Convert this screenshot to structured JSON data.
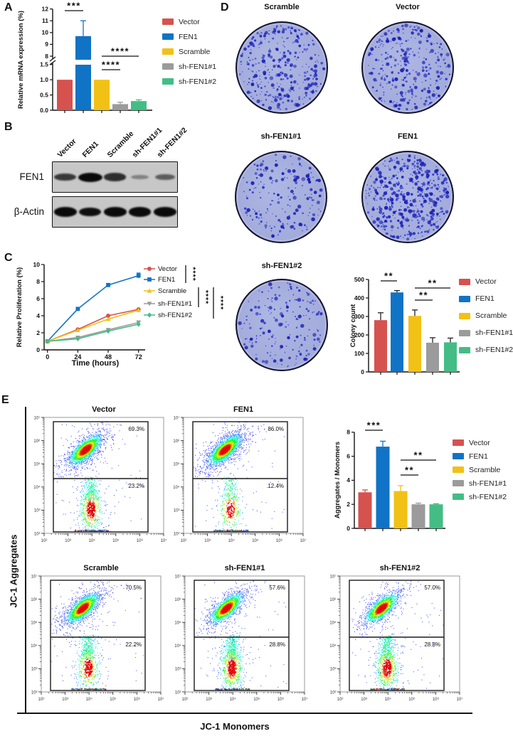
{
  "panel_labels": {
    "a": "A",
    "b": "B",
    "c": "C",
    "d": "D",
    "e": "E"
  },
  "groups": [
    {
      "name": "Vector",
      "color": "#d6524e",
      "marker": "circle"
    },
    {
      "name": "FEN1",
      "color": "#1173c5",
      "marker": "square"
    },
    {
      "name": "Scramble",
      "color": "#f2c115",
      "marker": "triangle"
    },
    {
      "name": "sh-FEN1#1",
      "color": "#9b9b9b",
      "marker": "triangle-down"
    },
    {
      "name": "sh-FEN1#2",
      "color": "#43bd85",
      "marker": "diamond"
    }
  ],
  "chart_data": [
    {
      "id": "mrna",
      "type": "bar",
      "ylabel": "Relative mRNA expression (%)",
      "categories": [
        "Vector",
        "FEN1",
        "Scramble",
        "sh-FEN1#1",
        "sh-FEN1#2"
      ],
      "values": [
        1.0,
        9.7,
        1.0,
        0.2,
        0.3
      ],
      "errors": [
        0,
        1.3,
        0,
        0.06,
        0.04
      ],
      "axis_break": {
        "lower_range": [
          0,
          1.5
        ],
        "upper_range": [
          8,
          12
        ]
      },
      "lower_ticks": [
        "0.0",
        "0.5",
        "1.0",
        "1.5"
      ],
      "upper_ticks": [
        "8",
        "9",
        "10",
        "11",
        "12"
      ],
      "significance": [
        {
          "from": 0,
          "to": 1,
          "label": "***"
        },
        {
          "from": 2,
          "to": 4,
          "label": "****"
        },
        {
          "from": 2,
          "to": 3,
          "label": "****"
        }
      ]
    },
    {
      "id": "proliferation",
      "type": "line",
      "xlabel": "Time (hours)",
      "ylabel": "Relative Proliferation (%)",
      "x": [
        0,
        24,
        48,
        72
      ],
      "xticks": [
        "0",
        "24",
        "48",
        "72"
      ],
      "yticks": [
        "0",
        "2",
        "4",
        "6",
        "8",
        "10"
      ],
      "ylim": [
        0,
        10
      ],
      "series": [
        {
          "name": "Vector",
          "values": [
            1.0,
            2.4,
            4.0,
            4.75
          ]
        },
        {
          "name": "FEN1",
          "values": [
            1.0,
            4.8,
            7.6,
            8.7
          ],
          "errors": [
            0,
            0,
            0.15,
            0.3
          ]
        },
        {
          "name": "Scramble",
          "values": [
            1.0,
            2.3,
            3.6,
            4.65
          ]
        },
        {
          "name": "sh-FEN1#1",
          "values": [
            1.0,
            1.45,
            2.35,
            3.2
          ],
          "errors": [
            0,
            0.12,
            0.15,
            0.2
          ]
        },
        {
          "name": "sh-FEN1#2",
          "values": [
            1.0,
            1.3,
            2.2,
            3.0
          ]
        }
      ],
      "significance": [
        {
          "from": "Vector",
          "to": "FEN1",
          "label": "****"
        },
        {
          "from": "Scramble",
          "to": "sh-FEN1#1",
          "label": "****"
        },
        {
          "from": "Scramble",
          "to": "sh-FEN1#2",
          "label": "****"
        }
      ]
    },
    {
      "id": "colony",
      "type": "bar",
      "ylabel": "Colony count",
      "categories": [
        "Vector",
        "FEN1",
        "Scramble",
        "sh-FEN1#1",
        "sh-FEN1#2"
      ],
      "values": [
        280,
        430,
        303,
        158,
        160
      ],
      "errors": [
        40,
        10,
        32,
        27,
        23
      ],
      "yticks": [
        "0",
        "100",
        "200",
        "300",
        "400",
        "500"
      ],
      "ymax": 500,
      "significance": [
        {
          "from": 0,
          "to": 1,
          "label": "**"
        },
        {
          "from": 2,
          "to": 4,
          "label": "**"
        },
        {
          "from": 2,
          "to": 3,
          "label": "**"
        }
      ]
    },
    {
      "id": "jc1_ratio",
      "type": "bar",
      "ylabel": "Aggregates / Monomers",
      "categories": [
        "Vector",
        "FEN1",
        "Scramble",
        "sh-FEN1#1",
        "sh-FEN1#2"
      ],
      "values": [
        3.0,
        6.8,
        3.1,
        2.0,
        2.0
      ],
      "errors": [
        0.2,
        0.45,
        0.45,
        0.1,
        0.05
      ],
      "yticks": [
        "0",
        "2",
        "4",
        "6",
        "8"
      ],
      "ymax": 8,
      "significance": [
        {
          "from": 0,
          "to": 1,
          "label": "***"
        },
        {
          "from": 2,
          "to": 4,
          "label": "**"
        },
        {
          "from": 2,
          "to": 3,
          "label": "**"
        }
      ]
    }
  ],
  "western_blot": {
    "lanes": [
      "Vector",
      "FEN1",
      "Scramble",
      "sh-FEN1#1",
      "sh-FEN1#2"
    ],
    "rows": [
      {
        "label": "FEN1",
        "intensities": [
          0.72,
          1.0,
          0.78,
          0.28,
          0.5
        ]
      },
      {
        "label": "β-Actin",
        "intensities": [
          1.0,
          0.8,
          1.0,
          0.95,
          1.0
        ]
      }
    ]
  },
  "colony_dishes": {
    "dish_fill": "#a3abdb",
    "colony_color": "#2230cf",
    "dish_order": [
      "Scramble",
      "Vector",
      "sh-FEN1#1",
      "FEN1",
      "sh-FEN1#2"
    ]
  },
  "flow_cytometry": {
    "xlabel": "JC-1 Monomers",
    "ylabel": "JC-1 Aggregates",
    "decade_ticks": [
      "10²",
      "10³",
      "10⁴",
      "10⁵",
      "10⁶",
      "10⁷"
    ],
    "plots": [
      {
        "name": "Vector",
        "aggregates_pct": "69.3%",
        "monomers_pct": "23.2%"
      },
      {
        "name": "FEN1",
        "aggregates_pct": "86.0%",
        "monomers_pct": "12.4%"
      },
      {
        "name": "Scramble",
        "aggregates_pct": "70.5%",
        "monomers_pct": "22.2%"
      },
      {
        "name": "sh-FEN1#1",
        "aggregates_pct": "57.6%",
        "monomers_pct": "28.8%"
      },
      {
        "name": "sh-FEN1#2",
        "aggregates_pct": "57.0%",
        "monomers_pct": "28.8%"
      }
    ]
  }
}
